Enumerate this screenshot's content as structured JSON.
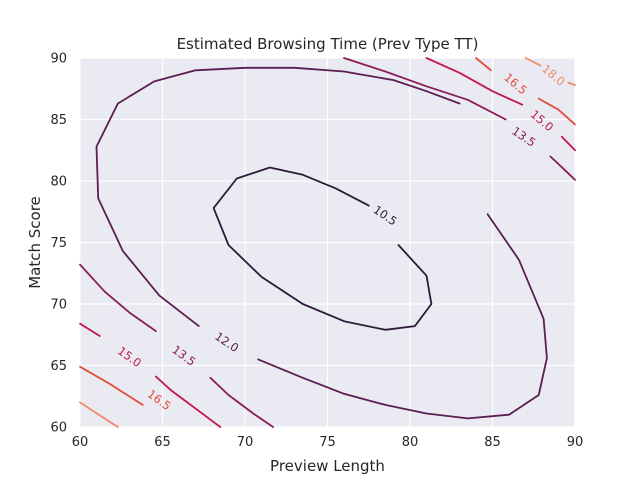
{
  "chart_data": {
    "type": "contour",
    "title": "Estimated Browsing Time (Prev Type TT)",
    "xlabel": "Preview Length",
    "ylabel": "Match Score",
    "xlim": [
      60,
      90
    ],
    "ylim": [
      60,
      90
    ],
    "x_ticks": [
      60,
      65,
      70,
      75,
      80,
      85,
      90
    ],
    "y_ticks": [
      60,
      65,
      70,
      75,
      80,
      85,
      90
    ],
    "x_tick_labels": [
      "60",
      "65",
      "70",
      "75",
      "80",
      "85",
      "90"
    ],
    "y_tick_labels": [
      "60",
      "65",
      "70",
      "75",
      "80",
      "85",
      "90"
    ],
    "grid": true,
    "background": "#eaeaf2",
    "levels": [
      {
        "value": 10.5,
        "label": "10.5",
        "color": "#2d1a3b",
        "segments": [
          [
            [
              77.5,
              78.0
            ],
            [
              75.5,
              79.4
            ],
            [
              73.5,
              80.5
            ],
            [
              71.5,
              81.1
            ],
            [
              69.5,
              80.2
            ],
            [
              68.1,
              77.8
            ],
            [
              69.0,
              74.8
            ],
            [
              71.0,
              72.2
            ],
            [
              73.5,
              70.0
            ],
            [
              76.0,
              68.6
            ],
            [
              78.5,
              67.9
            ],
            [
              80.3,
              68.2
            ],
            [
              81.3,
              70.0
            ],
            [
              81.0,
              72.3
            ],
            [
              79.3,
              74.8
            ]
          ]
        ]
      },
      {
        "value": 12.0,
        "label": "12.0",
        "color": "#5c1d52",
        "segments": [
          [
            [
              83.0,
              86.3
            ],
            [
              81.0,
              87.3
            ],
            [
              79.0,
              88.2
            ],
            [
              76.0,
              88.9
            ],
            [
              73.0,
              89.2
            ],
            [
              70.0,
              89.2
            ],
            [
              67.0,
              89.0
            ],
            [
              64.5,
              88.1
            ],
            [
              62.3,
              86.3
            ],
            [
              61.0,
              82.8
            ],
            [
              61.1,
              78.6
            ],
            [
              62.6,
              74.3
            ],
            [
              64.8,
              70.7
            ],
            [
              67.2,
              68.2
            ]
          ],
          [
            [
              70.8,
              65.5
            ],
            [
              73.5,
              64.0
            ],
            [
              76.0,
              62.7
            ],
            [
              78.5,
              61.8
            ],
            [
              81.0,
              61.1
            ],
            [
              83.5,
              60.7
            ],
            [
              86.0,
              61.0
            ],
            [
              87.8,
              62.6
            ],
            [
              88.3,
              65.6
            ],
            [
              88.1,
              68.8
            ],
            [
              86.6,
              73.6
            ],
            [
              84.7,
              77.3
            ]
          ]
        ]
      },
      {
        "value": 13.5,
        "label": "13.5",
        "color": "#8a1c5a",
        "segments": [
          [
            [
              60.0,
              73.2
            ],
            [
              61.5,
              71.0
            ],
            [
              63.0,
              69.3
            ],
            [
              64.6,
              67.8
            ]
          ],
          [
            [
              67.9,
              64.0
            ],
            [
              69.0,
              62.6
            ],
            [
              70.5,
              61.1
            ],
            [
              71.7,
              60.0
            ]
          ],
          [
            [
              76.0,
              90.0
            ],
            [
              78.5,
              88.9
            ],
            [
              81.0,
              87.7
            ],
            [
              83.5,
              86.6
            ],
            [
              85.8,
              85.0
            ]
          ],
          [
            [
              88.5,
              82.0
            ],
            [
              89.3,
              81.0
            ],
            [
              90.0,
              80.1
            ]
          ]
        ]
      },
      {
        "value": 15.0,
        "label": "15.0",
        "color": "#c5174d",
        "segments": [
          [
            [
              60.0,
              68.4
            ],
            [
              61.2,
              67.4
            ]
          ],
          [
            [
              64.6,
              64.1
            ],
            [
              65.5,
              63.0
            ],
            [
              66.5,
              62.0
            ],
            [
              67.5,
              61.0
            ],
            [
              68.5,
              60.0
            ]
          ],
          [
            [
              81.0,
              90.0
            ],
            [
              83.0,
              88.8
            ],
            [
              85.0,
              87.3
            ],
            [
              86.8,
              86.2
            ]
          ],
          [
            [
              89.2,
              83.6
            ],
            [
              90.0,
              82.5
            ]
          ]
        ]
      },
      {
        "value": 16.5,
        "label": "16.5",
        "color": "#e24d38",
        "segments": [
          [
            [
              60.0,
              64.9
            ],
            [
              61.8,
              63.5
            ],
            [
              63.8,
              61.8
            ]
          ],
          [
            [
              66.0,
              60.0
            ]
          ],
          [
            [
              84.0,
              90.0
            ],
            [
              84.9,
              89.0
            ]
          ],
          [
            [
              87.8,
              86.7
            ],
            [
              89.0,
              85.8
            ],
            [
              90.0,
              84.6
            ]
          ]
        ]
      },
      {
        "value": 18.0,
        "label": "18.0",
        "color": "#f08a6a",
        "segments": [
          [
            [
              60.0,
              62.0
            ],
            [
              61.6,
              60.6
            ],
            [
              62.3,
              60.0
            ]
          ],
          [
            [
              87.0,
              90.0
            ],
            [
              87.9,
              89.4
            ]
          ],
          [
            [
              90.0,
              87.8
            ],
            [
              89.6,
              88.0
            ]
          ]
        ]
      }
    ],
    "contour_labels": [
      {
        "text": "10.5",
        "x": 78.5,
        "y": 77.2,
        "angle": 34,
        "color": "#2d1a3b"
      },
      {
        "text": "12.0",
        "x": 68.9,
        "y": 66.9,
        "angle": 34,
        "color": "#5c1d52"
      },
      {
        "text": "13.5",
        "x": 86.9,
        "y": 83.6,
        "angle": 34,
        "color": "#8a1c5a"
      },
      {
        "text": "13.5",
        "x": 66.3,
        "y": 65.8,
        "angle": 36,
        "color": "#8a1c5a"
      },
      {
        "text": "15.0",
        "x": 63.0,
        "y": 65.7,
        "angle": 36,
        "color": "#c5174d"
      },
      {
        "text": "15.0",
        "x": 88.0,
        "y": 84.9,
        "angle": 40,
        "color": "#c5174d"
      },
      {
        "text": "16.5",
        "x": 64.8,
        "y": 62.2,
        "angle": 36,
        "color": "#e24d38"
      },
      {
        "text": "16.5",
        "x": 86.4,
        "y": 87.9,
        "angle": 40,
        "color": "#e24d38"
      },
      {
        "text": "18.0",
        "x": 88.7,
        "y": 88.6,
        "angle": 40,
        "color": "#f08a6a"
      }
    ]
  }
}
